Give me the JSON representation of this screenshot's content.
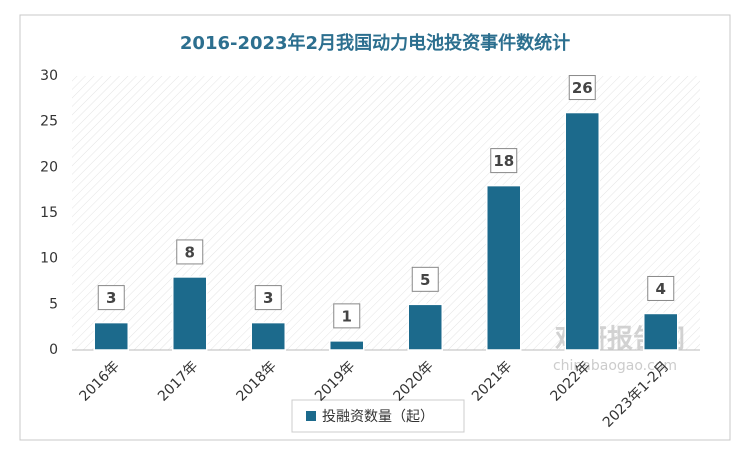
{
  "chart_data": {
    "type": "bar",
    "title": "2016-2023年2月我国动力电池投资事件数统计",
    "categories": [
      "2016年",
      "2017年",
      "2018年",
      "2019年",
      "2020年",
      "2021年",
      "2022年",
      "2023年1-2月"
    ],
    "series": [
      {
        "name": "投融资数量（起）",
        "color": "#1c6a8c",
        "values": [
          3,
          8,
          3,
          1,
          5,
          18,
          26,
          4
        ]
      }
    ],
    "ylim": [
      0,
      30
    ],
    "yticks": [
      0,
      5,
      10,
      15,
      20,
      25,
      30
    ],
    "grid": false,
    "legend": "bottom",
    "watermark": {
      "name": "观研报告网",
      "url": "chinabaogao.com"
    }
  }
}
